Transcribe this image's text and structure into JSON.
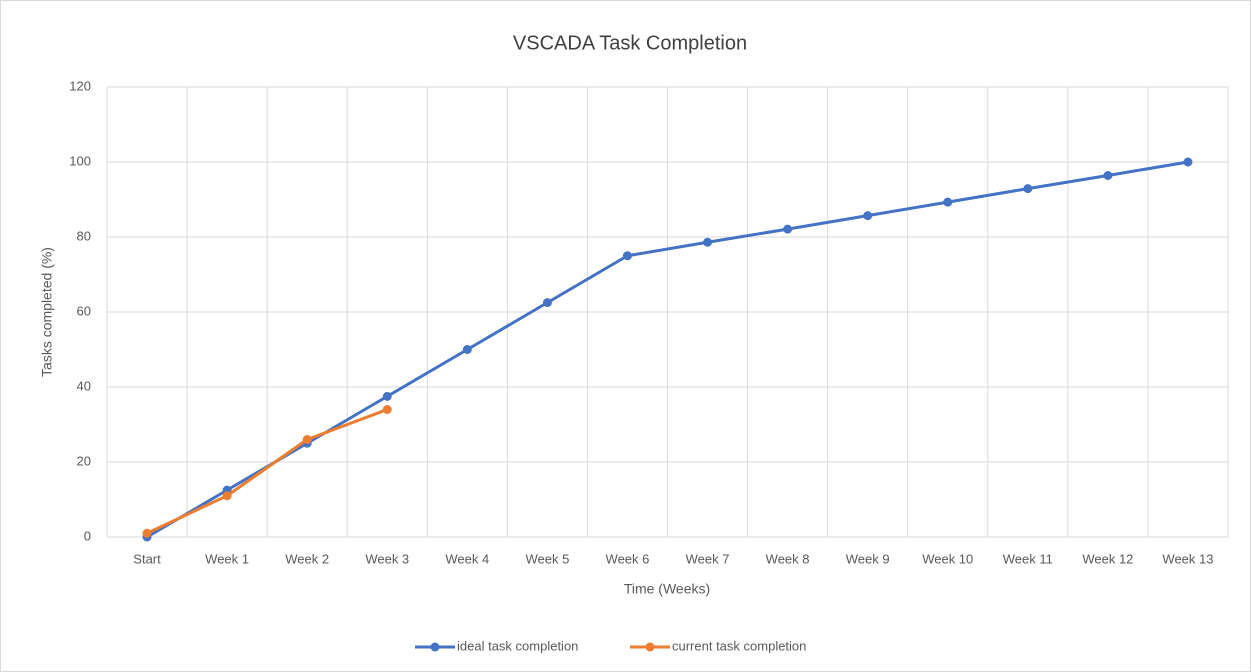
{
  "chart_data": {
    "type": "line",
    "title": "VSCADA Task Completion",
    "x_label": "Time (Weeks)",
    "y_label": "Tasks completed (%)",
    "categories": [
      "Start",
      "Week 1",
      "Week 2",
      "Week 3",
      "Week 4",
      "Week 5",
      "Week 6",
      "Week 7",
      "Week 8",
      "Week 9",
      "Week 10",
      "Week 11",
      "Week 12",
      "Week 13"
    ],
    "series": [
      {
        "name": "ideal task completion",
        "color": "#4472c4",
        "values": [
          0,
          12.5,
          25,
          37.5,
          50,
          62.5,
          75,
          78.6,
          82.1,
          85.7,
          89.3,
          92.9,
          96.4,
          100
        ]
      },
      {
        "name": "current task completion",
        "color": "#ed7d31",
        "values": [
          1,
          11,
          26,
          34,
          null,
          null,
          null,
          null,
          null,
          null,
          null,
          null,
          null,
          null
        ]
      }
    ],
    "ylim": [
      0,
      120
    ],
    "yticks": [
      0,
      20,
      40,
      60,
      80,
      100,
      120
    ],
    "grid": true,
    "legend": "bottom"
  }
}
